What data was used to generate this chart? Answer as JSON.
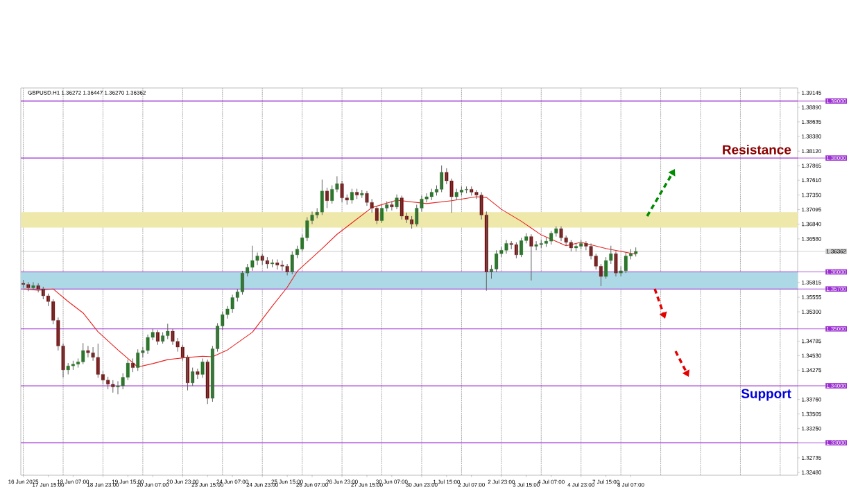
{
  "chart_data": {
    "type": "candlestick",
    "title": "GBPUSD.H1 1.36272 1.36447 1.36270 1.36362",
    "categories": [
      "16 Jun 2025",
      null,
      null,
      null,
      null,
      "17 Jun 15:00",
      null,
      null,
      null,
      null,
      "18 Jun 07:00",
      null,
      null,
      null,
      null,
      null,
      "18 Jun 23:00",
      null,
      null,
      null,
      null,
      "19 Jun 15:00",
      null,
      null,
      null,
      null,
      "20 Jun 07:00",
      null,
      null,
      null,
      null,
      null,
      "20 Jun 23:00",
      null,
      null,
      null,
      null,
      "23 Jun 15:00",
      null,
      null,
      null,
      null,
      "24 Jun 07:00",
      null,
      null,
      null,
      null,
      null,
      "24 Jun 23:00",
      null,
      null,
      null,
      null,
      "25 Jun 15:00",
      null,
      null,
      null,
      null,
      "26 Jun 07:00",
      null,
      null,
      null,
      null,
      null,
      "26 Jun 23:00",
      null,
      null,
      null,
      null,
      "27 Jun 15:00",
      null,
      null,
      null,
      null,
      "30 Jun 07:00",
      null,
      null,
      null,
      null,
      null,
      "30 Jun 23:00",
      null,
      null,
      null,
      null,
      "1 Jul 15:00",
      null,
      null,
      null,
      null,
      "2 Jul 07:00",
      null,
      null,
      null,
      null,
      null,
      "2 Jul 23:00",
      null,
      null,
      null,
      null,
      "3 Jul 15:00",
      null,
      null,
      null,
      null,
      "4 Jul 07:00",
      null,
      null,
      null,
      null,
      null,
      "4 Jul 23:00",
      null,
      null,
      null,
      null,
      "7 Jul 15:00",
      null,
      null,
      null,
      null,
      "8 Jul 07:00",
      null,
      null,
      null,
      null,
      null,
      null,
      null,
      null,
      null,
      null,
      null,
      null,
      null,
      null,
      null,
      null,
      null,
      null,
      null,
      null,
      null,
      null,
      null,
      null,
      null,
      null,
      null,
      null,
      null,
      null,
      null,
      null,
      null
    ],
    "ohlc": [
      [
        1.358,
        1.3586,
        1.3572,
        1.3578
      ],
      [
        1.3578,
        1.3582,
        1.3566,
        1.3572
      ],
      [
        1.3572,
        1.3582,
        1.3568,
        1.3576
      ],
      [
        1.3576,
        1.358,
        1.3564,
        1.357
      ],
      [
        1.357,
        1.3574,
        1.3552,
        1.3558
      ],
      [
        1.3558,
        1.3562,
        1.354,
        1.3548
      ],
      [
        1.3548,
        1.3552,
        1.3508,
        1.3515
      ],
      [
        1.3515,
        1.352,
        1.3462,
        1.347
      ],
      [
        1.347,
        1.3474,
        1.3415,
        1.3428
      ],
      [
        1.3428,
        1.344,
        1.342,
        1.3435
      ],
      [
        1.3435,
        1.3444,
        1.3428,
        1.3438
      ],
      [
        1.3438,
        1.3448,
        1.3432,
        1.3442
      ],
      [
        1.3442,
        1.3475,
        1.3438,
        1.3462
      ],
      [
        1.3462,
        1.347,
        1.345,
        1.3458
      ],
      [
        1.3458,
        1.3468,
        1.3444,
        1.345
      ],
      [
        1.345,
        1.3474,
        1.3414,
        1.342
      ],
      [
        1.342,
        1.3426,
        1.3402,
        1.341
      ],
      [
        1.341,
        1.3416,
        1.3394,
        1.3403
      ],
      [
        1.3403,
        1.341,
        1.3388,
        1.3398
      ],
      [
        1.3398,
        1.3408,
        1.3385,
        1.34
      ],
      [
        1.34,
        1.3422,
        1.3394,
        1.3415
      ],
      [
        1.3415,
        1.3446,
        1.341,
        1.344
      ],
      [
        1.344,
        1.3448,
        1.3424,
        1.3432
      ],
      [
        1.3432,
        1.3464,
        1.3426,
        1.3458
      ],
      [
        1.3458,
        1.3468,
        1.345,
        1.3462
      ],
      [
        1.3462,
        1.349,
        1.3456,
        1.3485
      ],
      [
        1.3485,
        1.35,
        1.348,
        1.3494
      ],
      [
        1.3494,
        1.3498,
        1.3472,
        1.3478
      ],
      [
        1.3478,
        1.3494,
        1.3474,
        1.3488
      ],
      [
        1.3488,
        1.3509,
        1.3482,
        1.3496
      ],
      [
        1.3496,
        1.35,
        1.3472,
        1.3478
      ],
      [
        1.3478,
        1.3484,
        1.346,
        1.3468
      ],
      [
        1.3468,
        1.3472,
        1.3444,
        1.345
      ],
      [
        1.345,
        1.3454,
        1.3392,
        1.3405
      ],
      [
        1.3405,
        1.3432,
        1.34,
        1.3425
      ],
      [
        1.3425,
        1.343,
        1.3412,
        1.342
      ],
      [
        1.342,
        1.3448,
        1.3414,
        1.3442
      ],
      [
        1.3442,
        1.3446,
        1.3368,
        1.3378
      ],
      [
        1.3378,
        1.347,
        1.3372,
        1.3465
      ],
      [
        1.3465,
        1.351,
        1.346,
        1.3505
      ],
      [
        1.3505,
        1.353,
        1.3498,
        1.3525
      ],
      [
        1.3525,
        1.354,
        1.3518,
        1.3535
      ],
      [
        1.3535,
        1.356,
        1.3528,
        1.3555
      ],
      [
        1.3555,
        1.357,
        1.3548,
        1.3565
      ],
      [
        1.3565,
        1.3602,
        1.356,
        1.3598
      ],
      [
        1.3598,
        1.3614,
        1.3592,
        1.3608
      ],
      [
        1.3608,
        1.3646,
        1.3602,
        1.362
      ],
      [
        1.362,
        1.3634,
        1.3612,
        1.3628
      ],
      [
        1.3628,
        1.3632,
        1.3612,
        1.362
      ],
      [
        1.362,
        1.3626,
        1.3606,
        1.3614
      ],
      [
        1.3614,
        1.3622,
        1.3608,
        1.3616
      ],
      [
        1.3616,
        1.3622,
        1.3604,
        1.3612
      ],
      [
        1.3612,
        1.362,
        1.3602,
        1.361
      ],
      [
        1.361,
        1.3614,
        1.3594,
        1.36
      ],
      [
        1.36,
        1.3636,
        1.3596,
        1.363
      ],
      [
        1.363,
        1.3646,
        1.3624,
        1.364
      ],
      [
        1.364,
        1.3666,
        1.3636,
        1.366
      ],
      [
        1.366,
        1.3696,
        1.3654,
        1.369
      ],
      [
        1.369,
        1.3706,
        1.3684,
        1.37
      ],
      [
        1.37,
        1.3712,
        1.3694,
        1.3705
      ],
      [
        1.3705,
        1.3762,
        1.37,
        1.3742
      ],
      [
        1.3742,
        1.3748,
        1.3712,
        1.3725
      ],
      [
        1.3725,
        1.3752,
        1.372,
        1.3745
      ],
      [
        1.3745,
        1.3768,
        1.374,
        1.3755
      ],
      [
        1.3755,
        1.376,
        1.3722,
        1.373
      ],
      [
        1.373,
        1.3736,
        1.3718,
        1.3726
      ],
      [
        1.3726,
        1.3746,
        1.372,
        1.374
      ],
      [
        1.374,
        1.3746,
        1.3728,
        1.3735
      ],
      [
        1.3735,
        1.3744,
        1.373,
        1.3738
      ],
      [
        1.3738,
        1.3742,
        1.3716,
        1.3722
      ],
      [
        1.3722,
        1.3728,
        1.3704,
        1.3712
      ],
      [
        1.3712,
        1.3716,
        1.3684,
        1.369
      ],
      [
        1.369,
        1.3718,
        1.3686,
        1.3712
      ],
      [
        1.3712,
        1.3724,
        1.3706,
        1.3718
      ],
      [
        1.3718,
        1.3724,
        1.3708,
        1.3714
      ],
      [
        1.3714,
        1.3736,
        1.371,
        1.373
      ],
      [
        1.373,
        1.3734,
        1.3692,
        1.3698
      ],
      [
        1.3698,
        1.3704,
        1.3686,
        1.3692
      ],
      [
        1.3692,
        1.3698,
        1.3676,
        1.3684
      ],
      [
        1.3684,
        1.3718,
        1.368,
        1.3712
      ],
      [
        1.3712,
        1.3734,
        1.3706,
        1.3728
      ],
      [
        1.3728,
        1.3738,
        1.3722,
        1.3732
      ],
      [
        1.3732,
        1.3746,
        1.3726,
        1.374
      ],
      [
        1.374,
        1.3752,
        1.3734,
        1.3745
      ],
      [
        1.3745,
        1.3787,
        1.374,
        1.3775
      ],
      [
        1.3775,
        1.3782,
        1.3754,
        1.376
      ],
      [
        1.376,
        1.3764,
        1.3704,
        1.3732
      ],
      [
        1.3732,
        1.3746,
        1.3726,
        1.374
      ],
      [
        1.374,
        1.375,
        1.3734,
        1.3744
      ],
      [
        1.3744,
        1.375,
        1.3738,
        1.3745
      ],
      [
        1.3745,
        1.375,
        1.3734,
        1.374
      ],
      [
        1.374,
        1.3744,
        1.3728,
        1.3735
      ],
      [
        1.3735,
        1.374,
        1.3692,
        1.37
      ],
      [
        1.37,
        1.3706,
        1.3567,
        1.36
      ],
      [
        1.36,
        1.3612,
        1.3588,
        1.3605
      ],
      [
        1.3605,
        1.3638,
        1.36,
        1.3632
      ],
      [
        1.3632,
        1.3644,
        1.3626,
        1.3638
      ],
      [
        1.3638,
        1.3656,
        1.3632,
        1.365
      ],
      [
        1.365,
        1.3654,
        1.364,
        1.3648
      ],
      [
        1.3648,
        1.3652,
        1.3624,
        1.363
      ],
      [
        1.363,
        1.366,
        1.3626,
        1.3655
      ],
      [
        1.3655,
        1.3668,
        1.365,
        1.3662
      ],
      [
        1.3662,
        1.3666,
        1.3585,
        1.3645
      ],
      [
        1.3645,
        1.3654,
        1.3638,
        1.3648
      ],
      [
        1.3648,
        1.3656,
        1.3642,
        1.365
      ],
      [
        1.365,
        1.366,
        1.3644,
        1.3654
      ],
      [
        1.3654,
        1.3672,
        1.3648,
        1.3668
      ],
      [
        1.3668,
        1.368,
        1.3662,
        1.3676
      ],
      [
        1.3676,
        1.368,
        1.3654,
        1.366
      ],
      [
        1.366,
        1.3664,
        1.3646,
        1.3652
      ],
      [
        1.3652,
        1.3656,
        1.3636,
        1.3642
      ],
      [
        1.3642,
        1.365,
        1.3636,
        1.3645
      ],
      [
        1.3645,
        1.3656,
        1.364,
        1.365
      ],
      [
        1.365,
        1.3654,
        1.3638,
        1.3645
      ],
      [
        1.3645,
        1.365,
        1.3622,
        1.3628
      ],
      [
        1.3628,
        1.3632,
        1.3604,
        1.361
      ],
      [
        1.361,
        1.3614,
        1.3575,
        1.3592
      ],
      [
        1.3592,
        1.3626,
        1.3588,
        1.362
      ],
      [
        1.362,
        1.3646,
        1.3614,
        1.3632
      ],
      [
        1.3632,
        1.3636,
        1.3592,
        1.3598
      ],
      [
        1.3598,
        1.361,
        1.3592,
        1.3602
      ],
      [
        1.3602,
        1.3634,
        1.3598,
        1.3628
      ],
      [
        1.3628,
        1.364,
        1.3622,
        1.3632
      ],
      [
        1.3632,
        1.3643,
        1.3627,
        1.3636
      ],
      null,
      null,
      null,
      null,
      null,
      null,
      null,
      null,
      null,
      null,
      null,
      null,
      null,
      null,
      null,
      null,
      null,
      null,
      null,
      null,
      null,
      null,
      null,
      null,
      null,
      null,
      null,
      null,
      null,
      null,
      null,
      null
    ],
    "series": [
      {
        "type": "line",
        "color": "#e8201f",
        "values": [
          1.357,
          null,
          null,
          1.3568,
          null,
          null,
          1.357,
          null,
          null,
          1.3548,
          null,
          null,
          1.3528,
          null,
          null,
          1.3495,
          null,
          null,
          null,
          1.3463,
          null,
          null,
          null,
          1.3433,
          null,
          null,
          1.3439,
          null,
          null,
          1.3446,
          null,
          null,
          1.3449,
          null,
          null,
          null,
          1.3452,
          null,
          1.3451,
          null,
          null,
          1.3463,
          null,
          null,
          null,
          null,
          1.3494,
          null,
          null,
          null,
          1.354,
          null,
          null,
          1.3573,
          null,
          1.3601,
          null,
          null,
          null,
          null,
          1.3641,
          null,
          null,
          1.3666,
          null,
          null,
          null,
          null,
          null,
          null,
          1.3713,
          null,
          null,
          null,
          null,
          1.3726,
          null,
          null,
          null,
          null,
          null,
          1.372,
          null,
          null,
          null,
          null,
          1.3725,
          null,
          null,
          null,
          null,
          1.3732,
          null,
          1.3731,
          null,
          null,
          1.371,
          null,
          null,
          null,
          1.3689,
          null,
          null,
          null,
          1.3665,
          null,
          null,
          null,
          null,
          1.3646,
          null,
          null,
          1.3652,
          null,
          null,
          null,
          null,
          1.3641,
          null,
          null,
          null,
          null,
          null,
          1.3631,
          null,
          null,
          null,
          null,
          null,
          null,
          null,
          null,
          null,
          null,
          null,
          null,
          null,
          null,
          null,
          null,
          null,
          null,
          null,
          null,
          null,
          null,
          null,
          null,
          null,
          null,
          null,
          null,
          null,
          null,
          null,
          null
        ]
      }
    ],
    "ylim": [
      1.3243,
      1.3923
    ],
    "yticks": [
      {
        "value": 1.39145,
        "label": "1.39145"
      },
      {
        "value": 1.3889,
        "label": "1.38890"
      },
      {
        "value": 1.38635,
        "label": "1.38635"
      },
      {
        "value": 1.3838,
        "label": "1.38380"
      },
      {
        "value": 1.3812,
        "label": "1.38120"
      },
      {
        "value": 1.37865,
        "label": "1.37865"
      },
      {
        "value": 1.3761,
        "label": "1.37610"
      },
      {
        "value": 1.3735,
        "label": "1.37350"
      },
      {
        "value": 1.37095,
        "label": "1.37095"
      },
      {
        "value": 1.3684,
        "label": "1.36840"
      },
      {
        "value": 1.3658,
        "label": "1.36580"
      },
      {
        "value": 1.35815,
        "label": "1.35815"
      },
      {
        "value": 1.35555,
        "label": "1.35555"
      },
      {
        "value": 1.353,
        "label": "1.35300"
      },
      {
        "value": 1.34785,
        "label": "1.34785"
      },
      {
        "value": 1.3453,
        "label": "1.34530"
      },
      {
        "value": 1.34275,
        "label": "1.34275"
      },
      {
        "value": 1.3376,
        "label": "1.33760"
      },
      {
        "value": 1.33505,
        "label": "1.33505"
      },
      {
        "value": 1.3325,
        "label": "1.33250"
      },
      {
        "value": 1.32735,
        "label": "1.32735"
      },
      {
        "value": 1.3248,
        "label": "1.32480"
      }
    ],
    "grid": "x",
    "bands": [
      {
        "axis": "y",
        "from": 1.357,
        "to": 1.36,
        "color": "#add8e6"
      },
      {
        "axis": "y",
        "from": 1.3678,
        "to": 1.3705,
        "color": "#eee8aa"
      }
    ],
    "ref_lines": [
      {
        "axis": "y",
        "value": 1.39,
        "label": "1.39000",
        "color": "#9b30d0"
      },
      {
        "axis": "y",
        "value": 1.38,
        "label": "1.38000",
        "color": "#9b30d0"
      },
      {
        "axis": "y",
        "value": 1.36362,
        "label": "1.36362",
        "color": "#c8c8c8"
      },
      {
        "axis": "y",
        "value": 1.36,
        "label": "1.36000",
        "color": "#9b30d0"
      },
      {
        "axis": "y",
        "value": 1.357,
        "label": "1.35700",
        "color": "#9b30d0"
      },
      {
        "axis": "y",
        "value": 1.35,
        "label": "1.35000",
        "color": "#9b30d0"
      },
      {
        "axis": "y",
        "value": 1.34,
        "label": "1.34000",
        "color": "#9b30d0"
      },
      {
        "axis": "y",
        "value": 1.33,
        "label": "1.33000",
        "color": "#9b30d0"
      }
    ],
    "annotations": [
      "Resistance",
      "Support"
    ]
  }
}
